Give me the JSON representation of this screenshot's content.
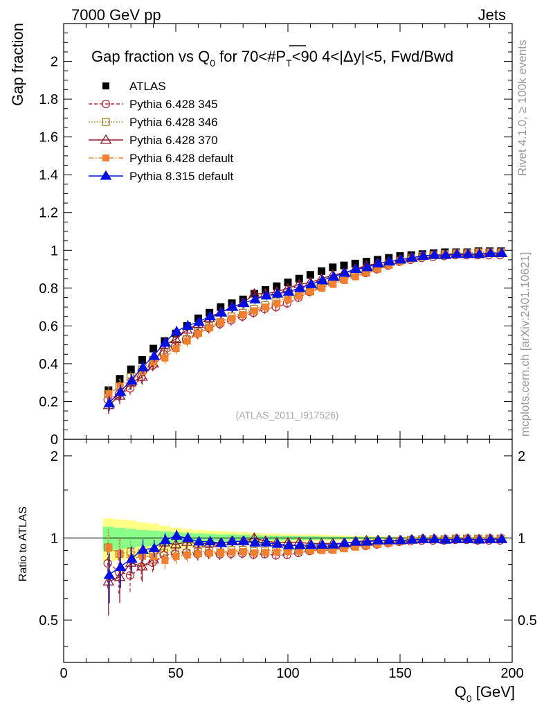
{
  "header": {
    "left": "7000 GeV pp",
    "right": "Jets"
  },
  "side": {
    "rivet": "Rivet 4.1.0, ≥ 100k events",
    "mcplots": "mcplots.cern.ch [arXiv:2401.10621]"
  },
  "watermark": "(ATLAS_2011_I917526)",
  "colors": {
    "atlas": "#000000",
    "p345": "#b0303a",
    "p346": "#a07820",
    "p370": "#8b1a2a",
    "p6def": "#f28030",
    "p8def": "#0010e0",
    "band_yellow": "#ffff88",
    "band_green": "#88ff88"
  },
  "chart_data": {
    "type": "scatter",
    "title": "Gap fraction vs Q",
    "title_sub": "0",
    "title_rest": " for 70<#P",
    "title_pt_sub": "T",
    "title_end": "<90  4<|Δy|<5, Fwd/Bwd",
    "ylabel": "Gap fraction",
    "ratio_ylabel": "Ratio to ATLAS",
    "xlabel": "Q",
    "xlabel_sub": "0",
    "xlabel_unit": " [GeV]",
    "xlim": [
      0,
      200
    ],
    "ylim": [
      0,
      2.2
    ],
    "ratio_ylim": [
      0.35,
      2.3
    ],
    "x_ticks": [
      "0",
      "50",
      "100",
      "150",
      "200"
    ],
    "y_ticks": [
      "0",
      "0.2",
      "0.4",
      "0.6",
      "0.8",
      "1",
      "1.2",
      "1.4",
      "1.6",
      "1.8",
      "2"
    ],
    "ratio_ticks": [
      "0.5",
      "1",
      "2"
    ],
    "x": [
      20,
      25,
      30,
      35,
      40,
      45,
      50,
      55,
      60,
      65,
      70,
      75,
      80,
      85,
      90,
      95,
      100,
      105,
      110,
      115,
      120,
      125,
      130,
      135,
      140,
      145,
      150,
      155,
      160,
      165,
      170,
      175,
      180,
      185,
      190,
      195
    ],
    "atlas": [
      0.26,
      0.32,
      0.37,
      0.42,
      0.48,
      0.52,
      0.56,
      0.6,
      0.64,
      0.67,
      0.7,
      0.72,
      0.74,
      0.77,
      0.79,
      0.81,
      0.83,
      0.85,
      0.87,
      0.89,
      0.91,
      0.92,
      0.93,
      0.94,
      0.95,
      0.96,
      0.97,
      0.975,
      0.98,
      0.985,
      0.99,
      0.99,
      0.99,
      0.995,
      0.995,
      0.995
    ],
    "band_yellow_rel": [
      0.18,
      0.17,
      0.16,
      0.14,
      0.13,
      0.11,
      0.09,
      0.08,
      0.07,
      0.065,
      0.06,
      0.055,
      0.05,
      0.045,
      0.04,
      0.04,
      0.035,
      0.03,
      0.03,
      0.028,
      0.025,
      0.022,
      0.02,
      0.018,
      0.016,
      0.015,
      0.014,
      0.013,
      0.012,
      0.011,
      0.01,
      0.01,
      0.01,
      0.01,
      0.01,
      0.01
    ],
    "band_green_rel": [
      0.1,
      0.09,
      0.08,
      0.07,
      0.065,
      0.06,
      0.05,
      0.045,
      0.04,
      0.035,
      0.03,
      0.03,
      0.028,
      0.025,
      0.022,
      0.02,
      0.018,
      0.016,
      0.015,
      0.013,
      0.012,
      0.011,
      0.01,
      0.009,
      0.008,
      0.008,
      0.007,
      0.006,
      0.006,
      0.005,
      0.005,
      0.005,
      0.005,
      0.005,
      0.005,
      0.005
    ],
    "series": [
      {
        "name": "Pythia 6.428 345",
        "key": "p345",
        "marker": "circle-open",
        "dash": "5,3",
        "values": [
          0.21,
          0.24,
          0.27,
          0.33,
          0.39,
          0.45,
          0.49,
          0.53,
          0.56,
          0.59,
          0.61,
          0.63,
          0.65,
          0.67,
          0.69,
          0.7,
          0.72,
          0.75,
          0.78,
          0.81,
          0.83,
          0.85,
          0.87,
          0.88,
          0.9,
          0.92,
          0.94,
          0.95,
          0.96,
          0.965,
          0.97,
          0.975,
          0.975,
          0.975,
          0.975,
          0.975
        ],
        "err": [
          0.04,
          0.04,
          0.035,
          0.035,
          0.03,
          0.03,
          0.03,
          0.03,
          0.03,
          0.03,
          0.028,
          0.028,
          0.027,
          0.027,
          0.026,
          0.025,
          0.025,
          0.024,
          0.023,
          0.022,
          0.021,
          0.02,
          0.02,
          0.019,
          0.018,
          0.017,
          0.016,
          0.015,
          0.014,
          0.013,
          0.012,
          0.012,
          0.012,
          0.012,
          0.012,
          0.012
        ]
      },
      {
        "name": "Pythia 6.428 346",
        "key": "p346",
        "marker": "square-open",
        "dash": "1.5,2.5",
        "values": [
          0.24,
          0.28,
          0.33,
          0.37,
          0.42,
          0.46,
          0.5,
          0.53,
          0.57,
          0.6,
          0.62,
          0.65,
          0.67,
          0.69,
          0.71,
          0.73,
          0.75,
          0.77,
          0.79,
          0.81,
          0.83,
          0.85,
          0.87,
          0.89,
          0.91,
          0.93,
          0.945,
          0.96,
          0.97,
          0.975,
          0.98,
          0.985,
          0.985,
          0.99,
          0.99,
          0.99
        ],
        "err": [
          0.04,
          0.04,
          0.035,
          0.035,
          0.03,
          0.03,
          0.03,
          0.03,
          0.03,
          0.03,
          0.028,
          0.028,
          0.027,
          0.027,
          0.026,
          0.025,
          0.025,
          0.024,
          0.023,
          0.022,
          0.021,
          0.02,
          0.02,
          0.019,
          0.018,
          0.017,
          0.016,
          0.015,
          0.014,
          0.013,
          0.012,
          0.012,
          0.012,
          0.012,
          0.012,
          0.012
        ]
      },
      {
        "name": "Pythia 6.428 370",
        "key": "p370",
        "marker": "triangle-open",
        "dash": "",
        "values": [
          0.18,
          0.23,
          0.3,
          0.33,
          0.4,
          0.5,
          0.53,
          0.58,
          0.61,
          0.64,
          0.67,
          0.7,
          0.72,
          0.77,
          0.77,
          0.78,
          0.8,
          0.82,
          0.83,
          0.85,
          0.87,
          0.88,
          0.9,
          0.92,
          0.93,
          0.94,
          0.95,
          0.96,
          0.97,
          0.975,
          0.975,
          0.98,
          0.98,
          0.98,
          0.985,
          0.985
        ],
        "err": [
          0.045,
          0.045,
          0.04,
          0.04,
          0.035,
          0.035,
          0.033,
          0.032,
          0.031,
          0.03,
          0.029,
          0.028,
          0.027,
          0.027,
          0.026,
          0.025,
          0.025,
          0.024,
          0.023,
          0.022,
          0.021,
          0.02,
          0.02,
          0.019,
          0.018,
          0.017,
          0.016,
          0.015,
          0.014,
          0.013,
          0.012,
          0.012,
          0.012,
          0.012,
          0.012,
          0.012
        ]
      },
      {
        "name": "Pythia 6.428 default",
        "key": "p6def",
        "marker": "square-filled",
        "dash": "7,3,1.5,3",
        "values": [
          0.24,
          0.28,
          0.31,
          0.36,
          0.41,
          0.43,
          0.48,
          0.52,
          0.56,
          0.59,
          0.62,
          0.64,
          0.66,
          0.68,
          0.7,
          0.72,
          0.74,
          0.76,
          0.78,
          0.8,
          0.82,
          0.84,
          0.86,
          0.88,
          0.9,
          0.92,
          0.94,
          0.955,
          0.965,
          0.975,
          0.98,
          0.985,
          0.985,
          0.99,
          0.99,
          0.99
        ],
        "err": [
          0.04,
          0.04,
          0.035,
          0.035,
          0.03,
          0.03,
          0.03,
          0.03,
          0.03,
          0.03,
          0.028,
          0.028,
          0.027,
          0.027,
          0.026,
          0.025,
          0.025,
          0.024,
          0.023,
          0.022,
          0.021,
          0.02,
          0.02,
          0.019,
          0.018,
          0.017,
          0.016,
          0.015,
          0.014,
          0.013,
          0.012,
          0.012,
          0.012,
          0.012,
          0.012,
          0.012
        ]
      },
      {
        "name": "Pythia 8.315 default",
        "key": "p8def",
        "marker": "triangle-filled",
        "dash": "",
        "values": [
          0.19,
          0.25,
          0.31,
          0.38,
          0.44,
          0.51,
          0.57,
          0.6,
          0.62,
          0.65,
          0.67,
          0.7,
          0.72,
          0.74,
          0.76,
          0.77,
          0.78,
          0.8,
          0.82,
          0.84,
          0.86,
          0.88,
          0.9,
          0.91,
          0.93,
          0.94,
          0.95,
          0.96,
          0.97,
          0.975,
          0.975,
          0.98,
          0.98,
          0.98,
          0.985,
          0.985
        ],
        "err": [
          0.04,
          0.04,
          0.035,
          0.035,
          0.032,
          0.031,
          0.03,
          0.03,
          0.03,
          0.029,
          0.028,
          0.027,
          0.027,
          0.026,
          0.025,
          0.025,
          0.024,
          0.023,
          0.022,
          0.021,
          0.02,
          0.02,
          0.019,
          0.018,
          0.017,
          0.016,
          0.015,
          0.014,
          0.013,
          0.012,
          0.012,
          0.012,
          0.012,
          0.012,
          0.012,
          0.012
        ]
      }
    ],
    "legend": [
      {
        "label": "ATLAS",
        "key": "atlas",
        "marker": "square-filled",
        "dash": "none"
      },
      {
        "label": "Pythia 6.428 345",
        "key": "p345",
        "marker": "circle-open",
        "dash": "5,3"
      },
      {
        "label": "Pythia 6.428 346",
        "key": "p346",
        "marker": "square-open",
        "dash": "1.5,2.5"
      },
      {
        "label": "Pythia 6.428 370",
        "key": "p370",
        "marker": "triangle-open",
        "dash": ""
      },
      {
        "label": "Pythia 6.428 default",
        "key": "p6def",
        "marker": "square-filled",
        "dash": "7,3,1.5,3"
      },
      {
        "label": "Pythia 8.315 default",
        "key": "p8def",
        "marker": "triangle-filled",
        "dash": ""
      }
    ]
  }
}
